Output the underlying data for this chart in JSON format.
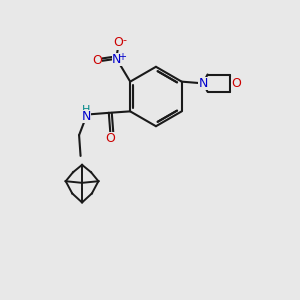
{
  "bg_color": "#e8e8e8",
  "bond_color": "#1a1a1a",
  "N_color": "#0000cc",
  "O_color": "#cc0000",
  "H_color": "#008888",
  "fig_size": [
    3.0,
    3.0
  ],
  "dpi": 100,
  "xlim": [
    0,
    10
  ],
  "ylim": [
    0,
    10
  ]
}
